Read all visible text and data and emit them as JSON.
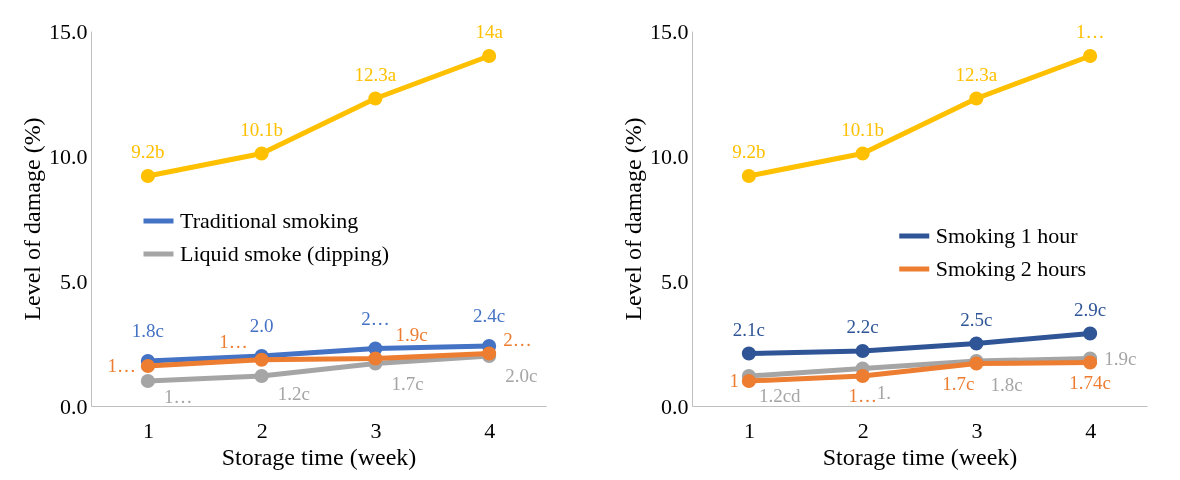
{
  "chart_data": [
    {
      "type": "line",
      "xlabel": "Storage time (week)",
      "ylabel": "Level of damage (%)",
      "categories": [
        "1",
        "2",
        "3",
        "4"
      ],
      "ylim": [
        0,
        15
      ],
      "yticks": [
        {
          "value": 0,
          "label": "0.0"
        },
        {
          "value": 5,
          "label": "5.0"
        },
        {
          "value": 10,
          "label": "10.0"
        },
        {
          "value": 15,
          "label": "15.0"
        }
      ],
      "marker": "circle",
      "legend": "left",
      "series": [
        {
          "color": "#ffc000",
          "values": [
            9.2,
            10.1,
            12.3,
            14
          ],
          "value_labels": [
            "9.2b",
            "10.1b",
            "12.3a",
            "14a"
          ]
        },
        {
          "name": "Traditional smoking",
          "color": "#4472c4",
          "values": [
            1.8,
            2.0,
            2.3,
            2.4
          ],
          "value_labels": [
            "1.8c",
            "2.0",
            "2…",
            "2.4c"
          ]
        },
        {
          "name": "Liquid smoke (dipping)",
          "color": "#a5a5a5",
          "values": [
            1.0,
            1.2,
            1.7,
            2.0
          ],
          "value_labels": [
            "1…",
            "1.2c",
            "1.7c",
            "2.0c"
          ]
        },
        {
          "color": "#ed7d31",
          "values": [
            1.6,
            1.85,
            1.9,
            2.1
          ],
          "value_labels": [
            "1…",
            "1…",
            "1.9c",
            "2…"
          ]
        }
      ]
    },
    {
      "type": "line",
      "xlabel": "Storage time (week)",
      "ylabel": "Level of damage (%)",
      "categories": [
        "1",
        "2",
        "3",
        "4"
      ],
      "ylim": [
        0,
        15
      ],
      "yticks": [
        {
          "value": 0,
          "label": "0.0"
        },
        {
          "value": 5,
          "label": "5.0"
        },
        {
          "value": 10,
          "label": "10.0"
        },
        {
          "value": 15,
          "label": "15.0"
        }
      ],
      "marker": "circle",
      "legend": "right",
      "series": [
        {
          "color": "#ffc000",
          "values": [
            9.2,
            10.1,
            12.3,
            14.0
          ],
          "value_labels": [
            "9.2b",
            "10.1b",
            "12.3a",
            "1…"
          ]
        },
        {
          "name": "Smoking 1 hour",
          "color": "#2f5597",
          "values": [
            2.1,
            2.2,
            2.5,
            2.9
          ],
          "value_labels": [
            "2.1c",
            "2.2c",
            "2.5c",
            "2.9c"
          ]
        },
        {
          "color": "#a5a5a5",
          "values": [
            1.2,
            1.5,
            1.8,
            1.9
          ],
          "value_labels": [
            "1.2cd",
            "1.",
            "1.8c",
            "1.9c"
          ]
        },
        {
          "name": "Smoking 2 hours",
          "color": "#ed7d31",
          "values": [
            1.0,
            1.2,
            1.7,
            1.74
          ],
          "value_labels": [
            "1",
            "1…",
            "1.7c",
            "1.74c"
          ]
        }
      ]
    }
  ]
}
